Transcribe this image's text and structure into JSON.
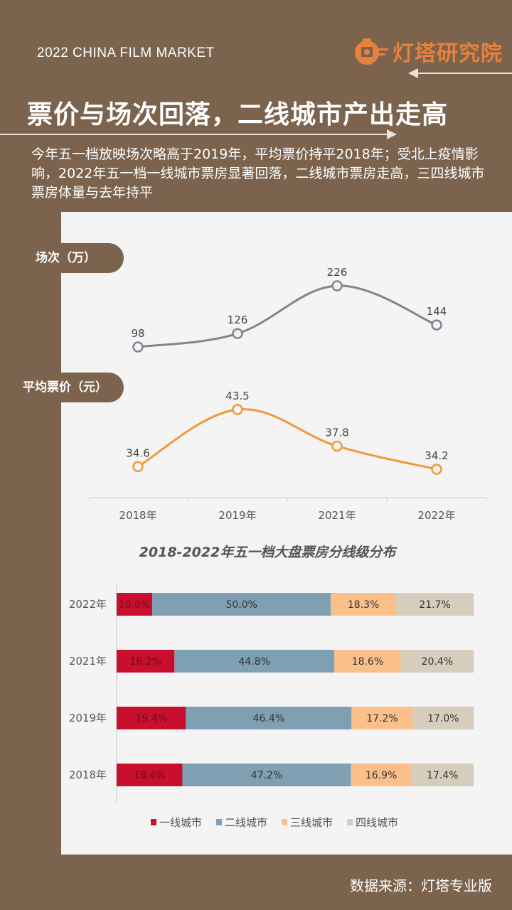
{
  "header": {
    "top_title": "2022 CHINA FILM MARKET",
    "brand": "灯塔研究院",
    "headline": "票价与场次回落，二线城市产出走高",
    "intro": "今年五一档放映场次略高于2019年，平均票价持平2018年；受北上疫情影响，2022年五一档一线城市票房显著回落，二线城市票房走高，三四线城市票房体量与去年持平"
  },
  "labels": {
    "screenings": "场次（万）",
    "avg_price": "平均票价（元）"
  },
  "source": "数据来源：灯塔专业版",
  "chart_data": [
    {
      "type": "line",
      "categories": [
        "2018年",
        "2019年",
        "2021年",
        "2022年"
      ],
      "series": [
        {
          "name": "场次（万）",
          "values": [
            98,
            126,
            226,
            144
          ],
          "color": "#7f8592"
        },
        {
          "name": "平均票价（元）",
          "values": [
            34.6,
            43.5,
            37.8,
            34.2
          ],
          "color": "#ee9a3a"
        }
      ]
    },
    {
      "type": "bar",
      "stacked": "percent",
      "orientation": "horizontal",
      "title": "2018-2022年五一档大盘票房分线级分布",
      "categories": [
        "2022年",
        "2021年",
        "2019年",
        "2018年"
      ],
      "series": [
        {
          "name": "一线城市",
          "values": [
            10.0,
            16.2,
            19.4,
            18.4
          ],
          "labels": [
            "10.0%",
            "16.2%",
            "19.4%",
            "18.4%"
          ],
          "color": "#c8102e"
        },
        {
          "name": "二线城市",
          "values": [
            50.0,
            44.8,
            46.4,
            47.2
          ],
          "labels": [
            "50.0%",
            "44.8%",
            "46.4%",
            "47.2%"
          ],
          "color": "#7f9fb3"
        },
        {
          "name": "三线城市",
          "values": [
            18.3,
            18.6,
            17.2,
            16.9
          ],
          "labels": [
            "18.3%",
            "18.6%",
            "17.2%",
            "16.9%"
          ],
          "color": "#fbbf8c"
        },
        {
          "name": "四线城市",
          "values": [
            21.7,
            20.4,
            17.0,
            17.4
          ],
          "labels": [
            "21.7%",
            "20.4%",
            "17.0%",
            "17.4%"
          ],
          "color": "#d6cdbd"
        }
      ],
      "legend": "bottom"
    }
  ]
}
